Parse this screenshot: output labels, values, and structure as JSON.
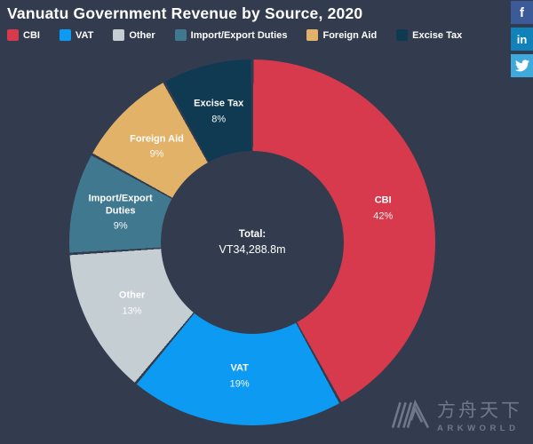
{
  "header": {
    "title": "Vanuatu Government Revenue by Source, 2020"
  },
  "theme": {
    "background": "#323c4e",
    "text": "#ffffff"
  },
  "chart_data": {
    "type": "pie",
    "subtype": "donut",
    "title": "Vanuatu Government Revenue by Source, 2020",
    "labels": [
      "CBI",
      "VAT",
      "Other",
      "Import/Export Duties",
      "Foreign Aid",
      "Excise Tax"
    ],
    "values": [
      42,
      19,
      13,
      9,
      9,
      8
    ],
    "unit": "%",
    "colors": [
      "#d63a4c",
      "#0d9af2",
      "#c5ced3",
      "#40798f",
      "#e3b269",
      "#103a52"
    ],
    "center_label": {
      "title": "Total:",
      "value": "VT34,288.8m"
    },
    "start_angle": 0,
    "direction": "clockwise",
    "legend_position": "top",
    "inner_radius_ratio": 0.5
  },
  "social": {
    "buttons": [
      {
        "id": "facebook",
        "glyph": "f",
        "color": "#3c5998"
      },
      {
        "id": "linkedin",
        "glyph": "in",
        "color": "#1181b9"
      },
      {
        "id": "twitter",
        "glyph": "twitter-bird",
        "color": "#3fa9dc"
      }
    ]
  },
  "watermark": {
    "cjk": "方舟天下",
    "latin": "ARKWORLD"
  }
}
